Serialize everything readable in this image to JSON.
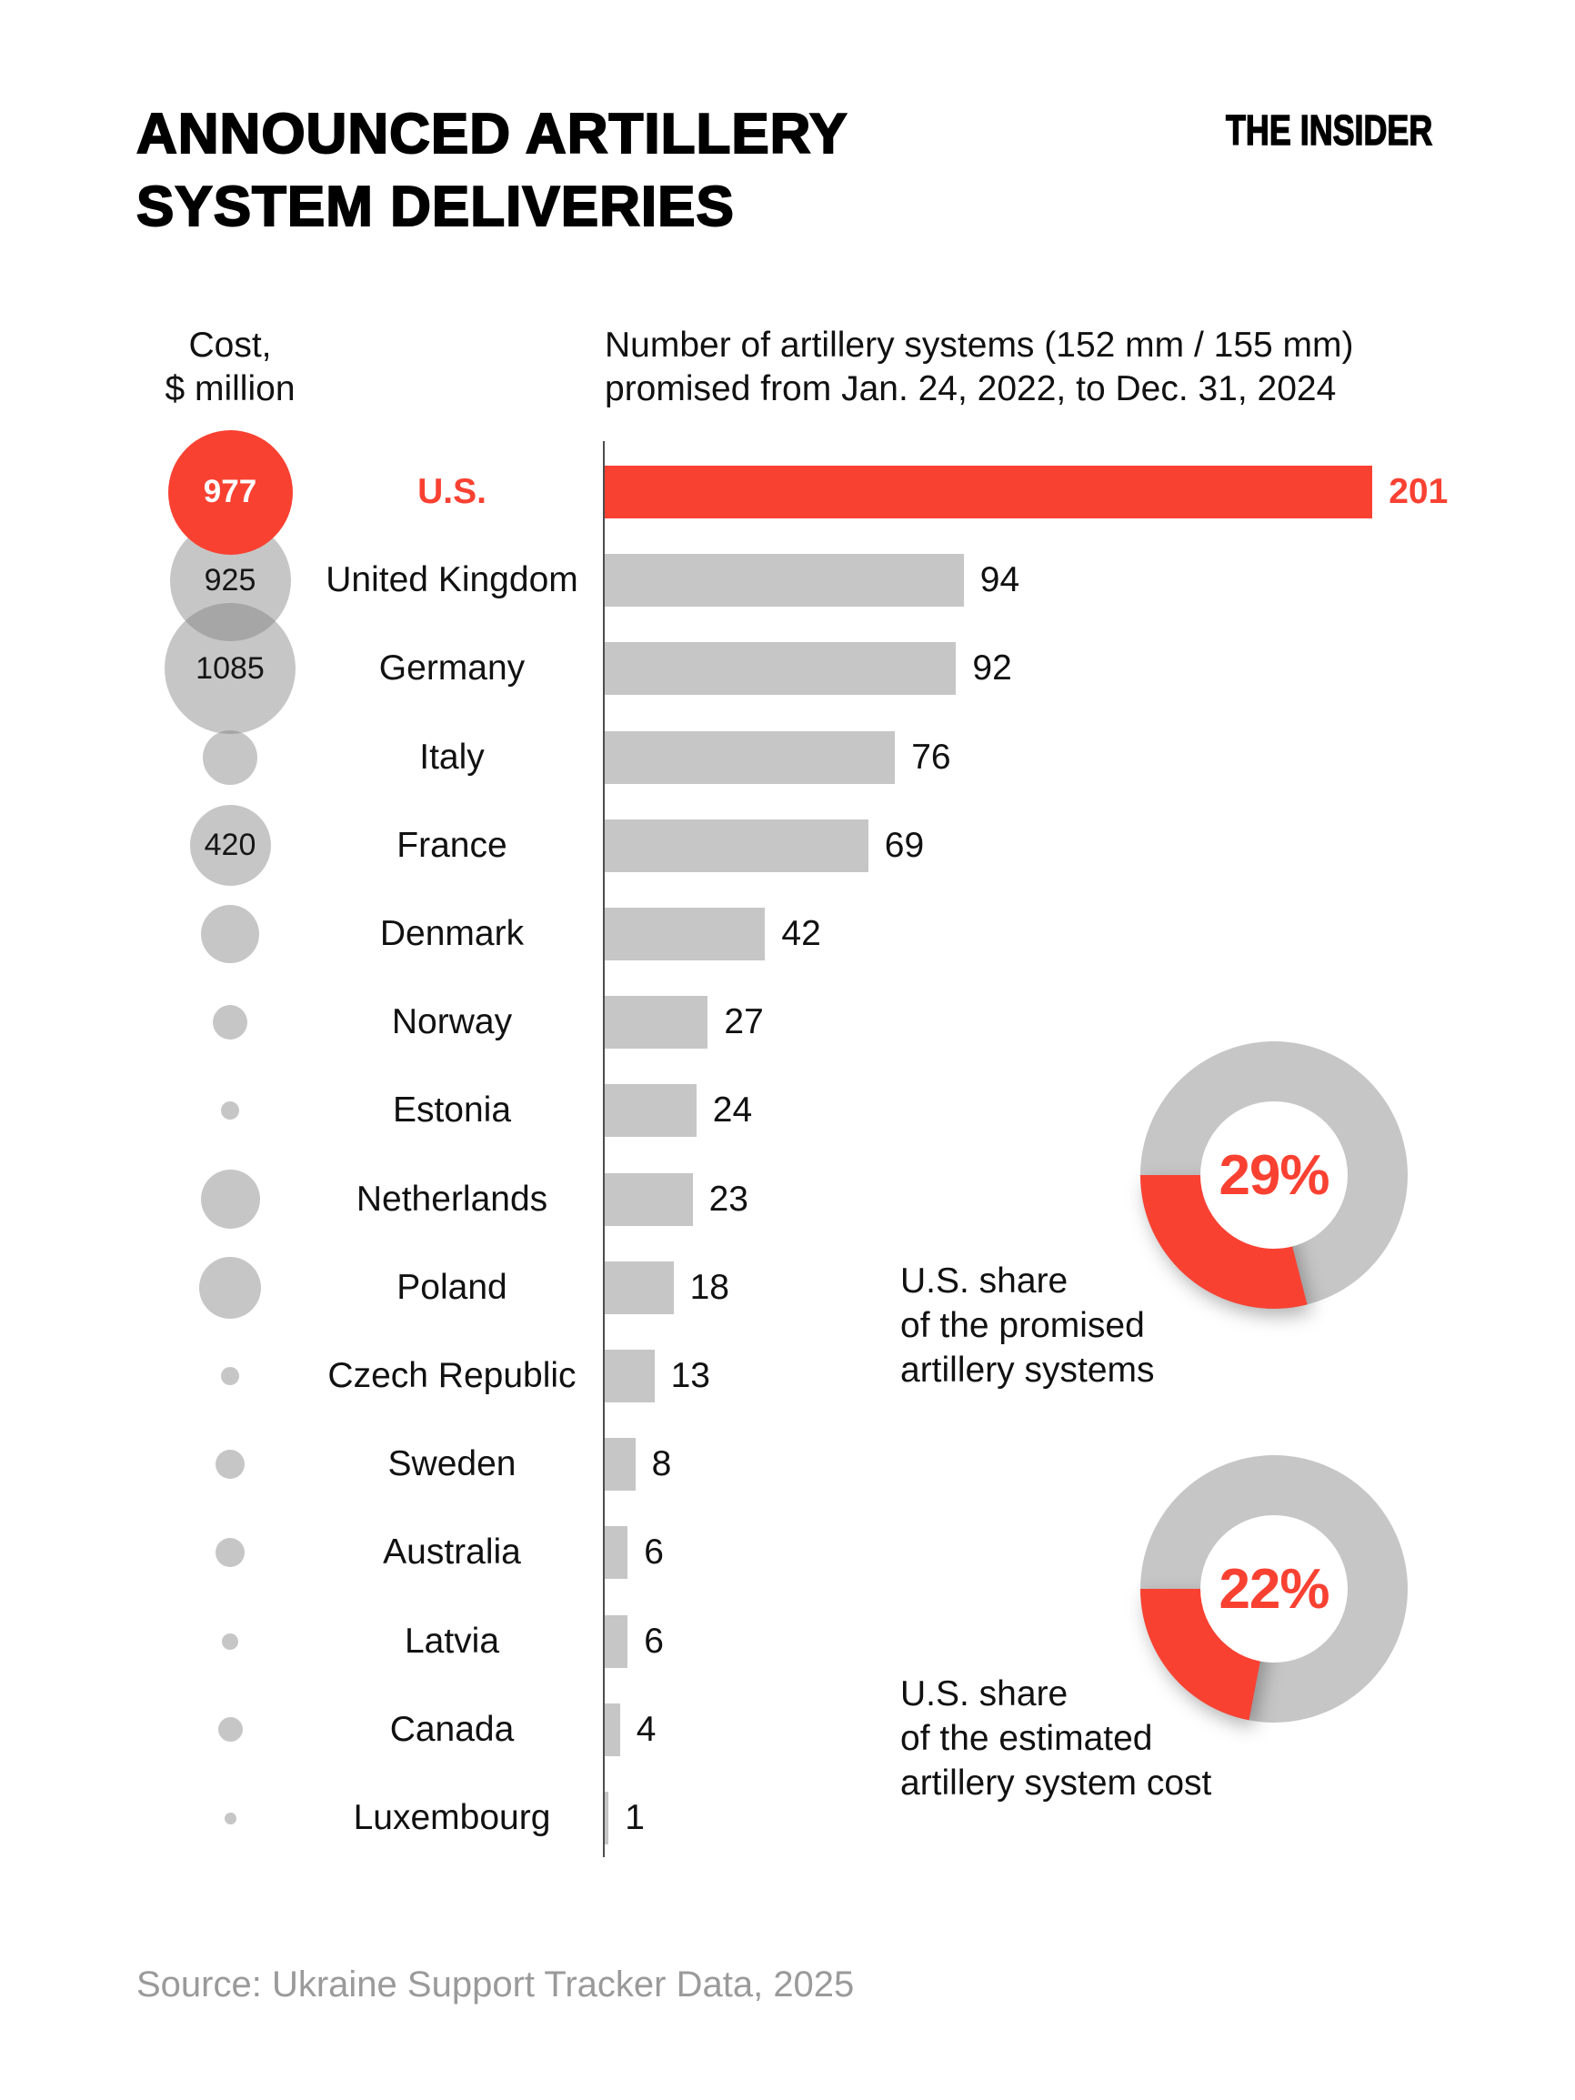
{
  "title": {
    "line1": "ANNOUNCED ARTILLERY",
    "line2": "SYSTEM DELIVERIES"
  },
  "brand": "THE INSIDER",
  "headers": {
    "cost_line1": "Cost,",
    "cost_line2": "$ million",
    "systems_line1": "Number of artillery systems (152 mm / 155 mm)",
    "systems_line2": "promised from Jan. 24, 2022, to Dec. 31, 2024"
  },
  "chart_data": {
    "type": "bar",
    "orientation": "horizontal",
    "title": "Number of artillery systems (152 mm / 155 mm) promised from Jan. 24, 2022, to Dec. 31, 2024",
    "bubble_legend": "Cost, $ million",
    "xlim": [
      0,
      201
    ],
    "grid": false,
    "categories": [
      "U.S.",
      "United Kingdom",
      "Germany",
      "Italy",
      "France",
      "Denmark",
      "Norway",
      "Estonia",
      "Netherlands",
      "Poland",
      "Czech Republic",
      "Sweden",
      "Australia",
      "Latvia",
      "Canada",
      "Luxembourg"
    ],
    "values": [
      201,
      94,
      92,
      76,
      69,
      42,
      27,
      24,
      23,
      18,
      13,
      8,
      6,
      6,
      4,
      1
    ],
    "rows": [
      {
        "country": "U.S.",
        "systems": 201,
        "cost_label": "977",
        "bubble_d": 137,
        "highlight": true
      },
      {
        "country": "United Kingdom",
        "systems": 94,
        "cost_label": "925",
        "bubble_d": 133,
        "highlight": false
      },
      {
        "country": "Germany",
        "systems": 92,
        "cost_label": "1085",
        "bubble_d": 144,
        "highlight": false
      },
      {
        "country": "Italy",
        "systems": 76,
        "cost_label": "",
        "bubble_d": 60,
        "highlight": false
      },
      {
        "country": "France",
        "systems": 69,
        "cost_label": "420",
        "bubble_d": 89,
        "highlight": false
      },
      {
        "country": "Denmark",
        "systems": 42,
        "cost_label": "",
        "bubble_d": 64,
        "highlight": false
      },
      {
        "country": "Norway",
        "systems": 27,
        "cost_label": "",
        "bubble_d": 38,
        "highlight": false
      },
      {
        "country": "Estonia",
        "systems": 24,
        "cost_label": "",
        "bubble_d": 20,
        "highlight": false
      },
      {
        "country": "Netherlands",
        "systems": 23,
        "cost_label": "",
        "bubble_d": 65,
        "highlight": false
      },
      {
        "country": "Poland",
        "systems": 18,
        "cost_label": "",
        "bubble_d": 68,
        "highlight": false
      },
      {
        "country": "Czech Republic",
        "systems": 13,
        "cost_label": "",
        "bubble_d": 20,
        "highlight": false
      },
      {
        "country": "Sweden",
        "systems": 8,
        "cost_label": "",
        "bubble_d": 32,
        "highlight": false
      },
      {
        "country": "Australia",
        "systems": 6,
        "cost_label": "",
        "bubble_d": 32,
        "highlight": false
      },
      {
        "country": "Latvia",
        "systems": 6,
        "cost_label": "",
        "bubble_d": 18,
        "highlight": false
      },
      {
        "country": "Canada",
        "systems": 4,
        "cost_label": "",
        "bubble_d": 27,
        "highlight": false
      },
      {
        "country": "Luxembourg",
        "systems": 1,
        "cost_label": "",
        "bubble_d": 13,
        "highlight": false
      }
    ]
  },
  "donuts": [
    {
      "pct": 29,
      "label": "29%",
      "caption_lines": [
        "U.S. share",
        "of the promised",
        "artillery systems"
      ]
    },
    {
      "pct": 22,
      "label": "22%",
      "caption_lines": [
        "U.S. share",
        "of the estimated",
        "artillery system cost"
      ]
    }
  ],
  "source": "Source: Ukraine Support Tracker Data, 2025",
  "colors": {
    "accent_red": "#F94132",
    "bar_gray": "#C6C6C6",
    "bubble_gray": "rgba(125,125,125,0.44)",
    "donut_gray": "#C6C6C6",
    "axis_gray": "#4D4D4D",
    "source_gray": "#9A9A9A"
  }
}
